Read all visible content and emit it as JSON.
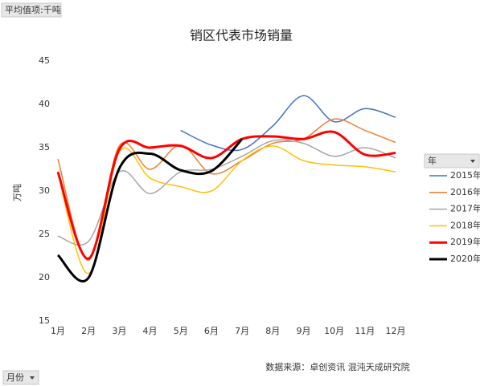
{
  "pivot": {
    "value_field": "平均值项:千吨",
    "legend_field": "年",
    "axis_field": "月份"
  },
  "chart_data": {
    "type": "line",
    "title": "销区代表市场销量",
    "y_label": "万吨",
    "source": "数据来源：卓创资讯 混沌天成研究院",
    "smooth": true,
    "categories": [
      "1月",
      "2月",
      "3月",
      "4月",
      "5月",
      "6月",
      "7月",
      "8月",
      "9月",
      "10月",
      "11月",
      "12月"
    ],
    "ylim": [
      15,
      45
    ],
    "yticks": [
      15,
      20,
      25,
      30,
      35,
      40,
      45
    ],
    "series": [
      {
        "name": "2015年",
        "color": "#4472c4",
        "line_width": 1.5,
        "values": [
          null,
          null,
          null,
          null,
          37,
          35.3,
          34.8,
          37.5,
          41,
          38,
          39.5,
          38.5
        ]
      },
      {
        "name": "2016年",
        "color": "#ed7d31",
        "line_width": 1.5,
        "values": [
          33.7,
          22,
          35.2,
          32.5,
          35.3,
          32,
          33.5,
          35.5,
          36,
          38.3,
          37,
          35.6
        ]
      },
      {
        "name": "2017年",
        "color": "#a5a5a5",
        "line_width": 1.5,
        "values": [
          24.8,
          24.2,
          32.2,
          29.7,
          32.2,
          32.5,
          34,
          35.8,
          35.5,
          34,
          35,
          33.8
        ]
      },
      {
        "name": "2018年",
        "color": "#ffc000",
        "line_width": 1.5,
        "values": [
          32,
          20.5,
          34.5,
          31.5,
          30.5,
          30,
          33.5,
          35.2,
          33.5,
          33,
          32.8,
          32.2
        ]
      },
      {
        "name": "2019年",
        "color": "#ff0000",
        "line_width": 3,
        "values": [
          32.2,
          22.2,
          34.8,
          35,
          35.2,
          33.8,
          36,
          36.3,
          36,
          36.8,
          34.2,
          34.4
        ]
      },
      {
        "name": "2020年",
        "color": "#000000",
        "line_width": 3,
        "values": [
          22.6,
          20,
          32.6,
          34.3,
          32.4,
          32.3,
          36,
          null,
          null,
          null,
          null,
          null
        ]
      }
    ]
  }
}
